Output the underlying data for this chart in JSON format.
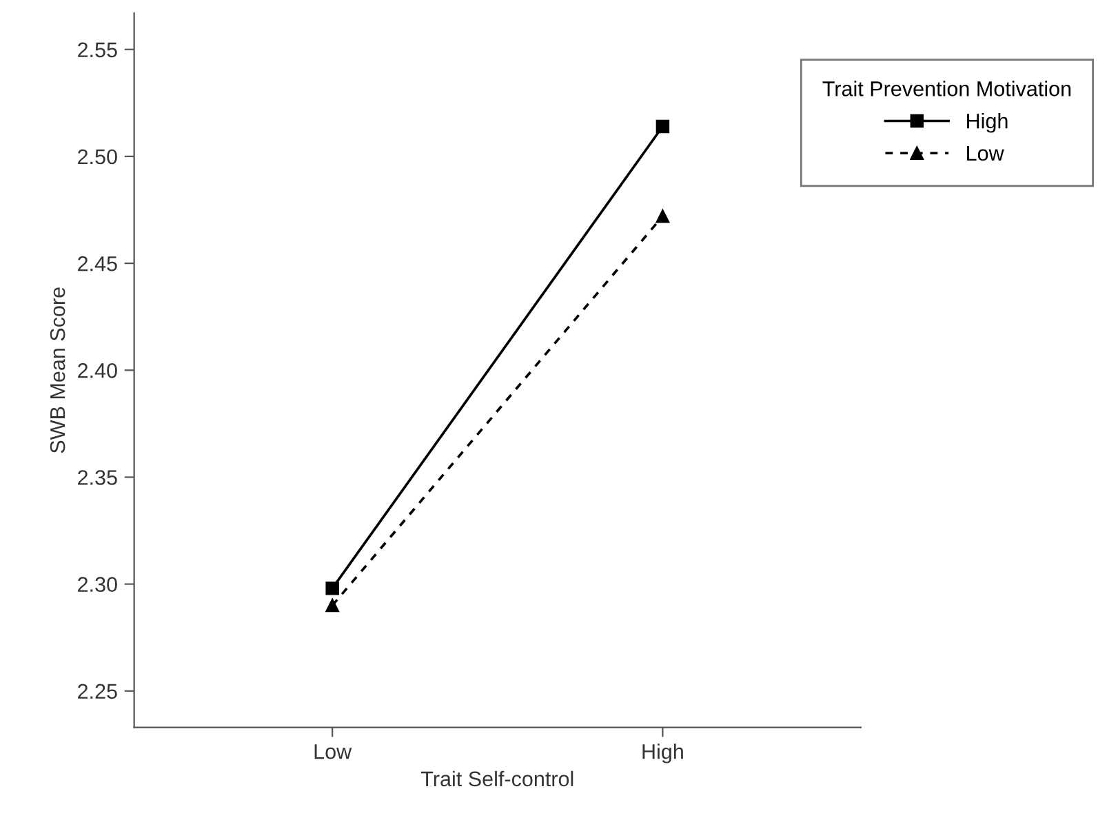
{
  "chart_data": {
    "type": "line",
    "xlabel": "Trait Self-control",
    "ylabel": "SWB Mean Score",
    "legend_title": "Trait Prevention Motivation",
    "categories": [
      "Low",
      "High"
    ],
    "series": [
      {
        "name": "High",
        "color": "#000000",
        "values": [
          2.298,
          2.514
        ],
        "marker": "square",
        "line_style": "solid"
      },
      {
        "name": "Low",
        "color": "#000000",
        "values": [
          2.29,
          2.472
        ],
        "marker": "triangle",
        "line_style": "dashed"
      }
    ],
    "ylim": [
      2.233,
      2.567
    ],
    "yticks": [
      {
        "value": 2.25,
        "label": "2.25"
      },
      {
        "value": 2.3,
        "label": "2.30"
      },
      {
        "value": 2.35,
        "label": "2.35"
      },
      {
        "value": 2.4,
        "label": "2.40"
      },
      {
        "value": 2.45,
        "label": "2.45"
      },
      {
        "value": 2.5,
        "label": "2.50"
      },
      {
        "value": 2.55,
        "label": "2.55"
      }
    ],
    "grid": false,
    "legend": "top right"
  }
}
